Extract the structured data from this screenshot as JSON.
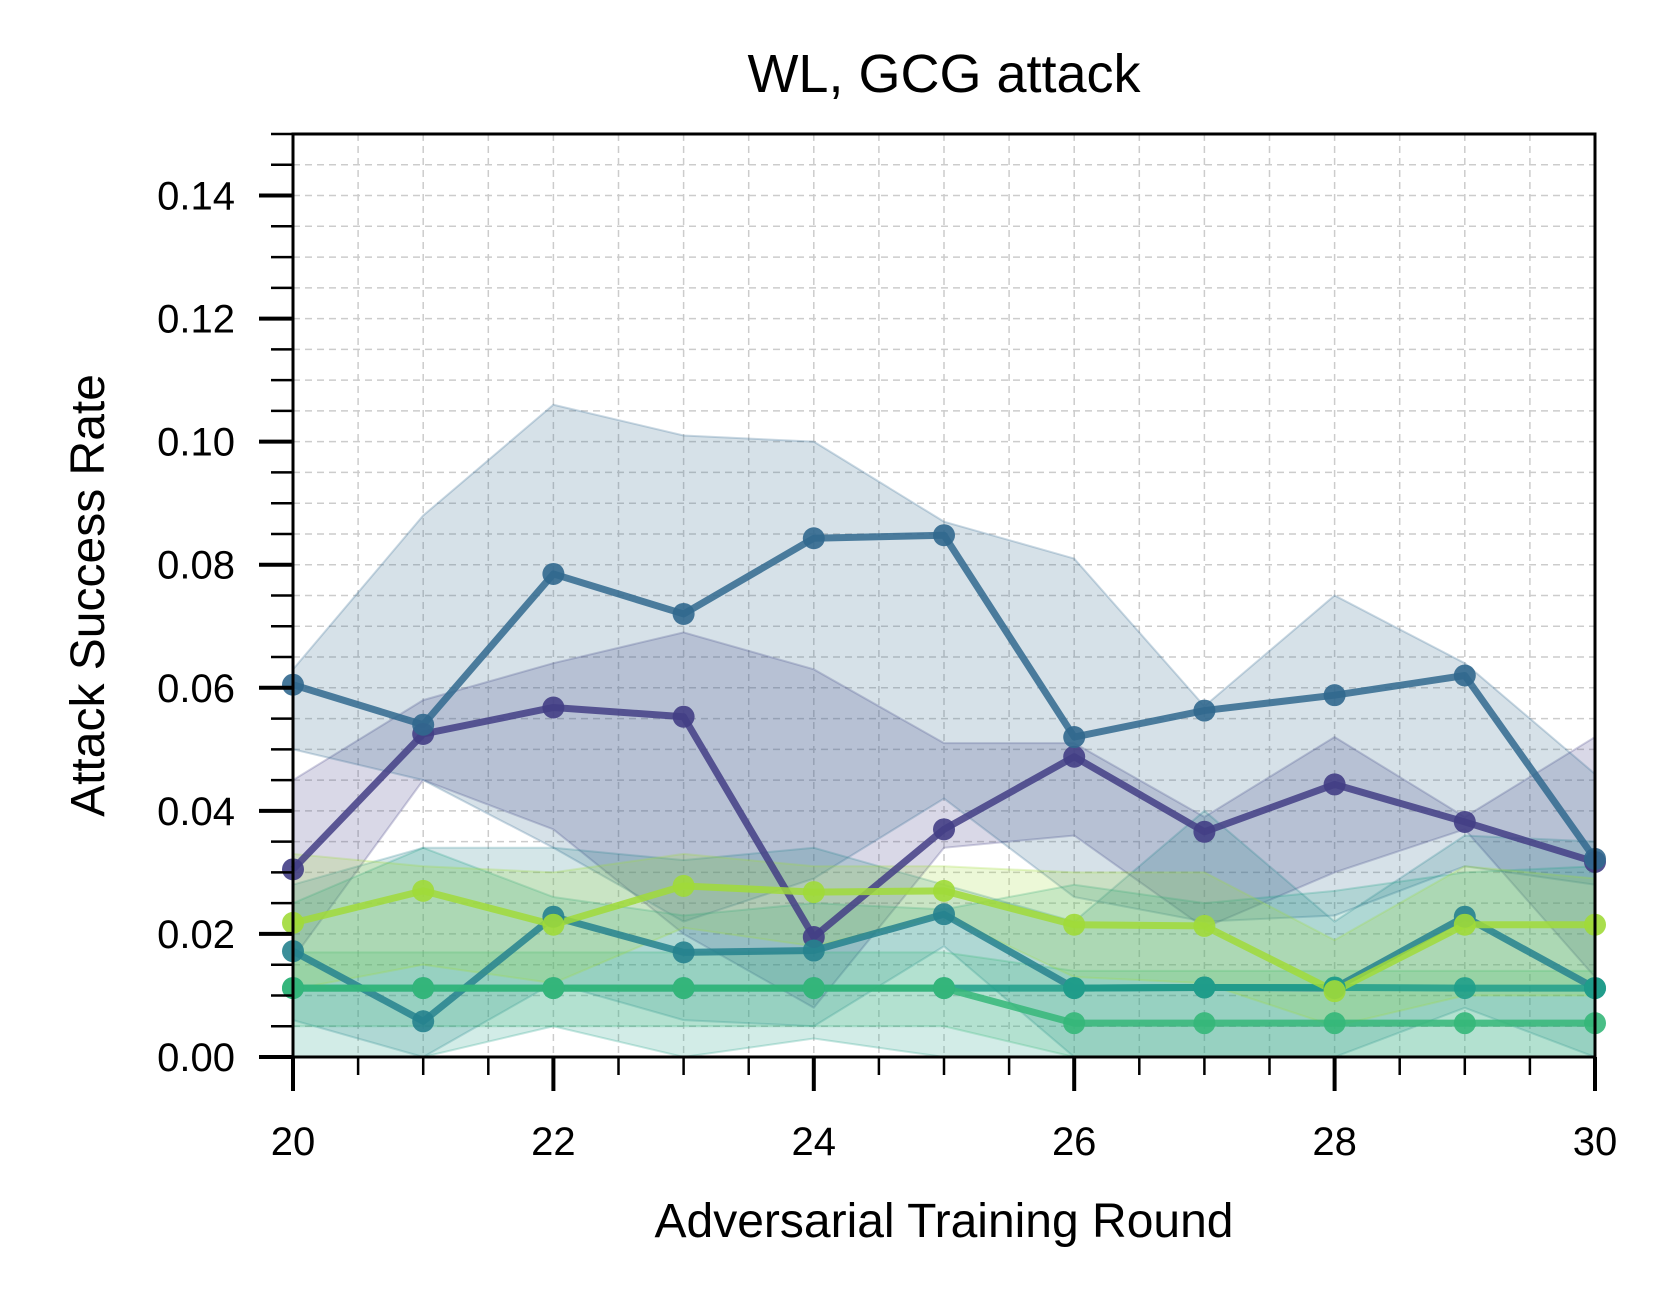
{
  "chart_data": {
    "type": "line",
    "title": "WL, GCG attack",
    "xlabel": "Adversarial Training Round",
    "ylabel": "Attack Success Rate",
    "xlim": [
      20,
      30
    ],
    "ylim": [
      0,
      0.15
    ],
    "xticks": [
      "20",
      "22",
      "24",
      "26",
      "28",
      "30"
    ],
    "yticks": [
      "0.00",
      "0.02",
      "0.04",
      "0.06",
      "0.08",
      "0.10",
      "0.12",
      "0.14"
    ],
    "grid": true,
    "x": [
      20,
      21,
      22,
      23,
      24,
      25,
      26,
      27,
      28,
      29,
      30
    ],
    "series": [
      {
        "color": "#433e85",
        "values": [
          0.0305,
          0.0525,
          0.0568,
          0.0553,
          0.0195,
          0.037,
          0.0488,
          0.0366,
          0.0443,
          0.0382,
          0.0317
        ],
        "lower": [
          0.016,
          0.045,
          0.037,
          0.02,
          0.008,
          0.034,
          0.036,
          0.021,
          0.03,
          0.037,
          0.013
        ],
        "upper": [
          0.045,
          0.058,
          0.064,
          0.069,
          0.063,
          0.051,
          0.051,
          0.039,
          0.052,
          0.039,
          0.052
        ]
      },
      {
        "color": "#31688e",
        "values": [
          0.0605,
          0.054,
          0.0785,
          0.072,
          0.0843,
          0.0848,
          0.052,
          0.0563,
          0.0588,
          0.062,
          0.0322
        ],
        "lower": [
          0.05,
          0.045,
          0.034,
          0.022,
          0.029,
          0.042,
          0.026,
          0.022,
          0.023,
          0.031,
          0.028
        ],
        "upper": [
          0.063,
          0.088,
          0.106,
          0.101,
          0.1,
          0.087,
          0.081,
          0.057,
          0.075,
          0.064,
          0.046
        ]
      },
      {
        "color": "#26828e",
        "values": [
          0.0172,
          0.0058,
          0.0228,
          0.017,
          0.0173,
          0.0232,
          0.0112,
          0.0113,
          0.0112,
          0.0228,
          0.0112
        ],
        "lower": [
          0.006,
          0.0,
          0.012,
          0.006,
          0.005,
          0.018,
          0.0,
          0.0,
          0.0,
          0.008,
          0.0
        ],
        "upper": [
          0.028,
          0.034,
          0.034,
          0.032,
          0.034,
          0.028,
          0.022,
          0.04,
          0.022,
          0.036,
          0.035
        ]
      },
      {
        "color": "#1f9e89",
        "values": [
          0.0112,
          0.0112,
          0.0112,
          0.0112,
          0.0112,
          0.0112,
          0.0112,
          0.0113,
          0.0113,
          0.0112,
          0.0112
        ],
        "lower": [
          0.0,
          0.0,
          0.005,
          0.0,
          0.003,
          0.0,
          0.0,
          0.0,
          0.0,
          0.0,
          0.0
        ],
        "upper": [
          0.025,
          0.034,
          0.026,
          0.023,
          0.025,
          0.024,
          0.028,
          0.025,
          0.027,
          0.03,
          0.031
        ]
      },
      {
        "color": "#35b779",
        "values": [
          0.0112,
          0.0112,
          0.0112,
          0.0112,
          0.0112,
          0.0112,
          0.0055,
          0.0055,
          0.0055,
          0.0055,
          0.0055
        ],
        "lower": [
          0.005,
          0.005,
          0.005,
          0.005,
          0.005,
          0.005,
          0.0,
          0.0,
          0.0,
          0.0,
          0.0
        ],
        "upper": [
          0.017,
          0.017,
          0.017,
          0.017,
          0.017,
          0.017,
          0.014,
          0.014,
          0.014,
          0.014,
          0.014
        ]
      },
      {
        "color": "#a0da39",
        "values": [
          0.0218,
          0.027,
          0.0215,
          0.0278,
          0.0268,
          0.027,
          0.0215,
          0.0213,
          0.0107,
          0.0215,
          0.0215
        ],
        "lower": [
          0.011,
          0.015,
          0.012,
          0.021,
          0.018,
          0.023,
          0.013,
          0.012,
          0.005,
          0.01,
          0.01
        ],
        "upper": [
          0.033,
          0.031,
          0.03,
          0.033,
          0.031,
          0.031,
          0.03,
          0.03,
          0.019,
          0.031,
          0.029
        ]
      }
    ]
  }
}
